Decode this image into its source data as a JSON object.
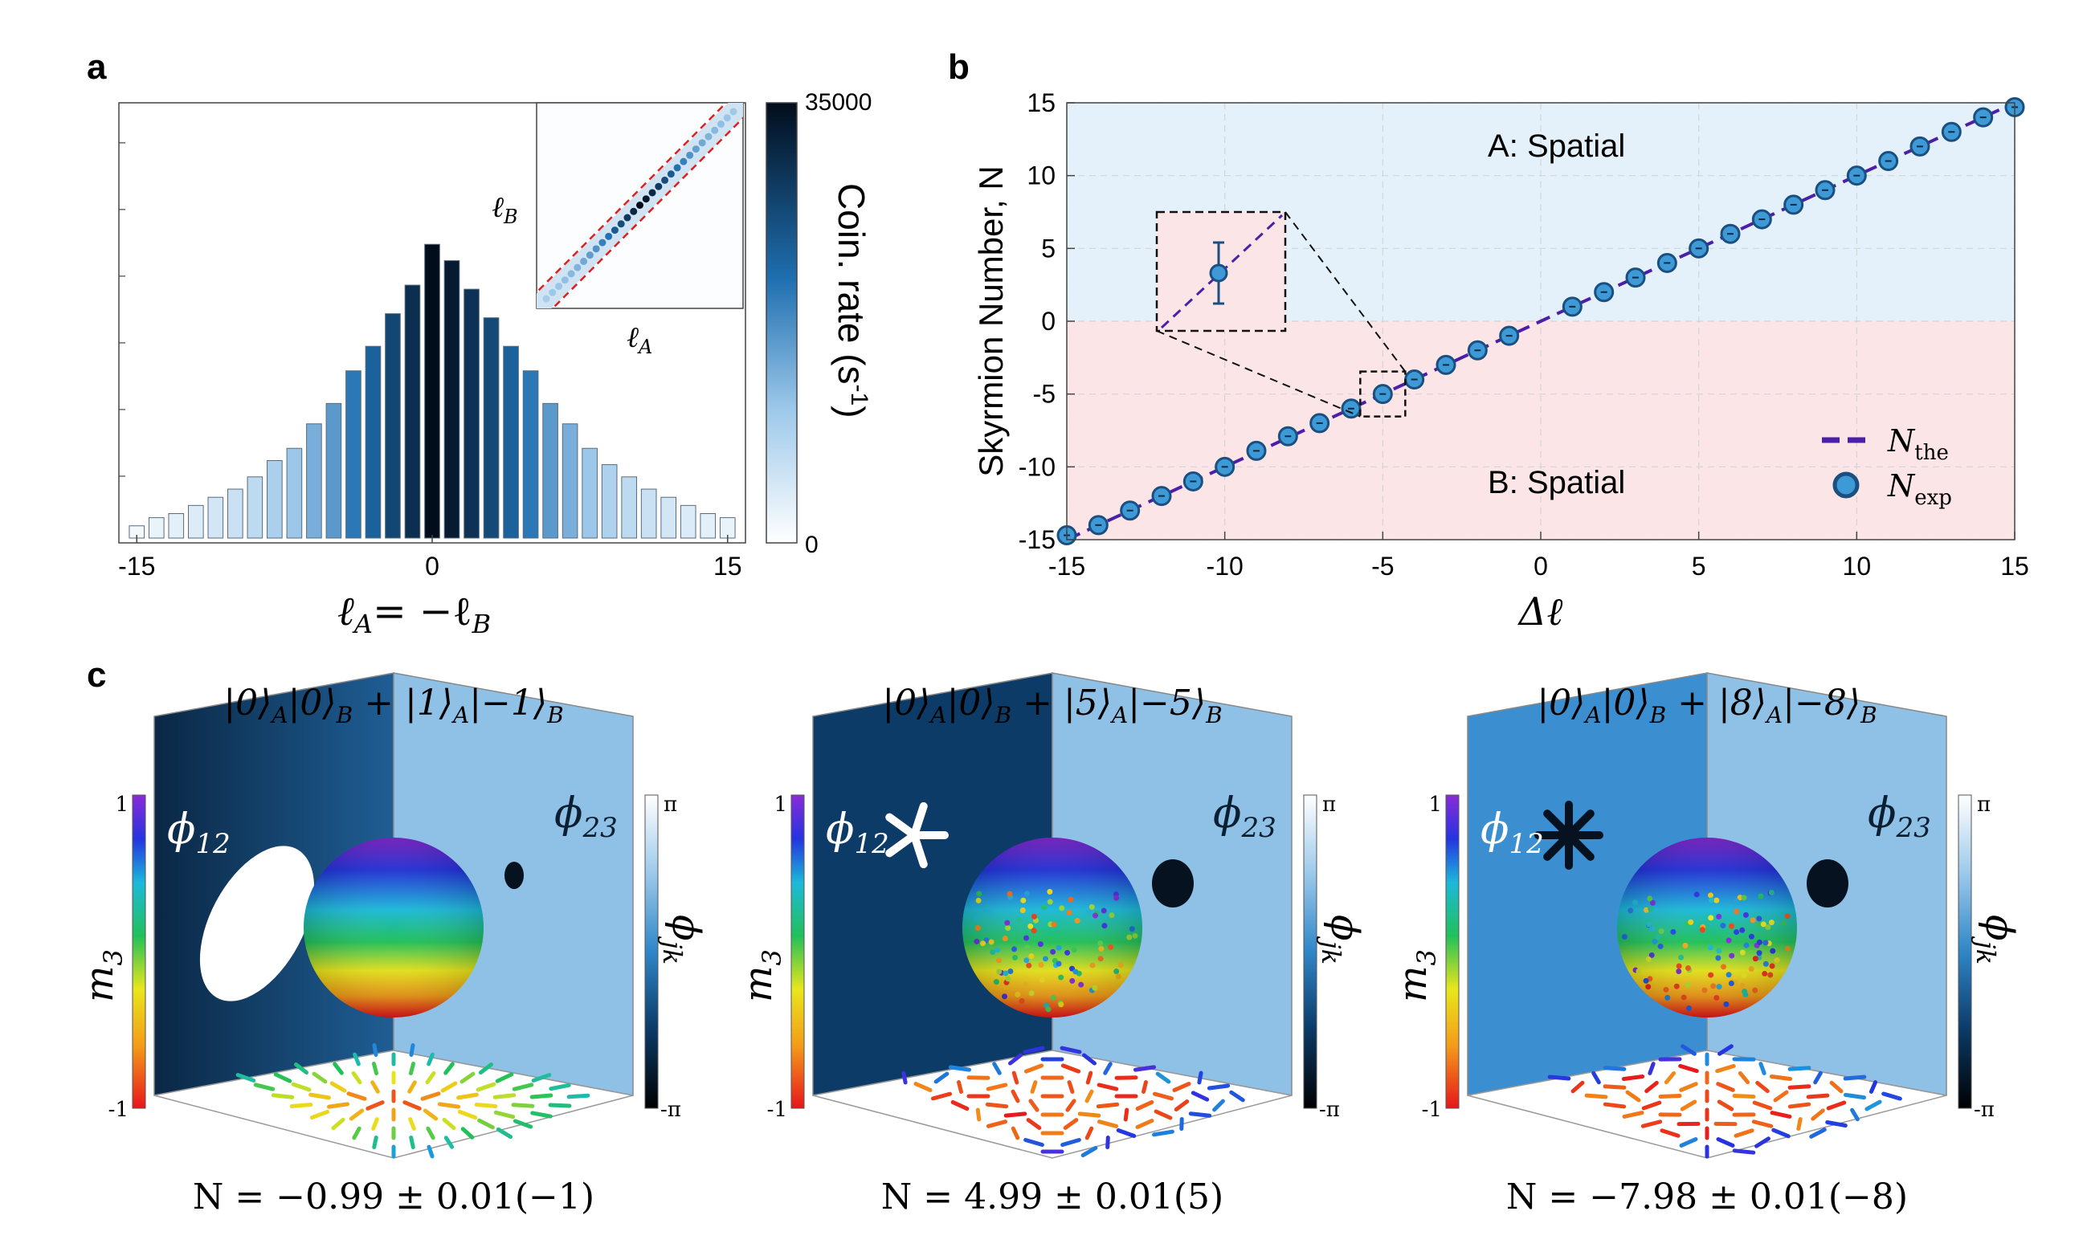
{
  "panels": {
    "a": {
      "label": "a",
      "xlabel_main": "ℓ",
      "xlabel_sub": "A",
      "xlabel_eq": "= −ℓ",
      "xlabel_sub2": "B",
      "inset_xlabel_main": "ℓ",
      "inset_xlabel_sub": "A",
      "inset_ylabel_main": "ℓ",
      "inset_ylabel_sub": "B",
      "colorbar_label_main": "Coin. rate (s",
      "colorbar_label_sup": "-1",
      "colorbar_label_end": ")",
      "colorbar_max_label": "35000",
      "colorbar_min_label": "0"
    },
    "b": {
      "label": "b",
      "region_a_label": "A: Spatial",
      "region_b_label": "B: Spatial",
      "legend_the_main": "N",
      "legend_the_sub": "the",
      "legend_exp_main": "N",
      "legend_exp_sub": "exp"
    },
    "c": {
      "label": "c",
      "subpanels": [
        {
          "title_main": "|0⟩",
          "t1": "A",
          "t2": "|0⟩",
          "t3": "B",
          "t4": " + |1⟩",
          "t5": "A",
          "t6": "|−1⟩",
          "t7": "B",
          "result": "N = −0.99 ± 0.01(−1)",
          "phi12": "ϕ",
          "phi12_sub": "12",
          "phi23": "ϕ",
          "phi23_sub": "23",
          "m3": "m",
          "m3_sub": "3",
          "phijk": "ϕ",
          "phijk_sub": "jk",
          "m3_top": "1",
          "m3_bottom": "-1",
          "phi_top": "π",
          "phi_bottom": "-π",
          "winding": 1
        },
        {
          "title_main": "|0⟩",
          "t1": "A",
          "t2": "|0⟩",
          "t3": "B",
          "t4": " + |5⟩",
          "t5": "A",
          "t6": "|−5⟩",
          "t7": "B",
          "result": "N = 4.99 ± 0.01(5)",
          "phi12": "ϕ",
          "phi12_sub": "12",
          "phi23": "ϕ",
          "phi23_sub": "23",
          "m3": "m",
          "m3_sub": "3",
          "phijk": "ϕ",
          "phijk_sub": "jk",
          "m3_top": "1",
          "m3_bottom": "-1",
          "phi_top": "π",
          "phi_bottom": "-π",
          "winding": 5
        },
        {
          "title_main": "|0⟩",
          "t1": "A",
          "t2": "|0⟩",
          "t3": "B",
          "t4": " + |8⟩",
          "t5": "A",
          "t6": "|−8⟩",
          "t7": "B",
          "result": "N = −7.98 ± 0.01(−8)",
          "phi12": "ϕ",
          "phi12_sub": "12",
          "phi23": "ϕ",
          "phi23_sub": "23",
          "m3": "m",
          "m3_sub": "3",
          "phijk": "ϕ",
          "phijk_sub": "jk",
          "m3_top": "1",
          "m3_bottom": "-1",
          "phi_top": "π",
          "phi_bottom": "-π",
          "winding": 8
        }
      ]
    }
  },
  "colors": {
    "blue_dark": "#08203a",
    "blue_mid": "#1f6fb0",
    "blue_light": "#dbe9f5",
    "region_a": "#e4f1fb",
    "region_b": "#fbe5e7",
    "theory_line": "#4b1fa8",
    "marker_fill": "#3e9ad6",
    "marker_edge": "#1a4f80"
  },
  "chart_data": [
    {
      "type": "bar",
      "title": "a",
      "xlabel": "ℓA = −ℓB",
      "ylabel": "",
      "categories": [
        -15,
        -14,
        -13,
        -12,
        -11,
        -10,
        -9,
        -8,
        -7,
        -6,
        -5,
        -4,
        -3,
        -2,
        -1,
        0,
        1,
        2,
        3,
        4,
        5,
        6,
        7,
        8,
        9,
        10,
        11,
        12,
        13,
        14,
        15
      ],
      "values": [
        0.03,
        0.05,
        0.06,
        0.08,
        0.1,
        0.12,
        0.15,
        0.19,
        0.22,
        0.28,
        0.33,
        0.41,
        0.47,
        0.55,
        0.62,
        0.72,
        0.68,
        0.61,
        0.54,
        0.47,
        0.41,
        0.33,
        0.28,
        0.22,
        0.18,
        0.15,
        0.12,
        0.1,
        0.08,
        0.06,
        0.05
      ],
      "xlim": [
        -15,
        15
      ],
      "x_ticks": [
        -15,
        0,
        15
      ],
      "ylim": [
        0,
        1
      ],
      "colorbar_range": [
        0,
        35000
      ]
    },
    {
      "type": "line",
      "title": "b",
      "xlabel": "Δℓ",
      "ylabel": "Skyrmion Number, N",
      "xlim": [
        -15,
        15
      ],
      "ylim": [
        -15,
        15
      ],
      "x_ticks": [
        -15,
        -10,
        -5,
        0,
        5,
        10,
        15
      ],
      "y_ticks": [
        -15,
        -10,
        -5,
        0,
        5,
        10,
        15
      ],
      "grid": true,
      "legend": "bottom-right",
      "series": [
        {
          "name": "Nthe",
          "x": [
            -15,
            15
          ],
          "y": [
            -15,
            15
          ]
        },
        {
          "name": "Nexp",
          "x": [
            -15,
            -14,
            -13,
            -12,
            -11,
            -10,
            -9,
            -8,
            -7,
            -6,
            -5,
            -4,
            -3,
            -2,
            -1,
            1,
            2,
            3,
            4,
            5,
            6,
            7,
            8,
            9,
            10,
            11,
            12,
            13,
            14,
            15
          ],
          "y": [
            -14.7,
            -14,
            -13,
            -12,
            -11,
            -10,
            -8.9,
            -7.9,
            -7,
            -6,
            -5,
            -4,
            -3,
            -2,
            -1,
            1,
            2,
            3,
            4,
            5,
            6,
            7,
            8,
            9,
            10,
            11,
            12,
            13,
            14,
            14.7
          ]
        }
      ],
      "ticks_x_labels": [
        "-15",
        "-10",
        "-5",
        "0",
        "5",
        "10",
        "15"
      ],
      "ticks_y_labels": [
        "-15",
        "-10",
        "-5",
        "0",
        "5",
        "10",
        "15"
      ],
      "inset_point": {
        "x": -5,
        "y": -5,
        "err": 0.3
      }
    }
  ]
}
